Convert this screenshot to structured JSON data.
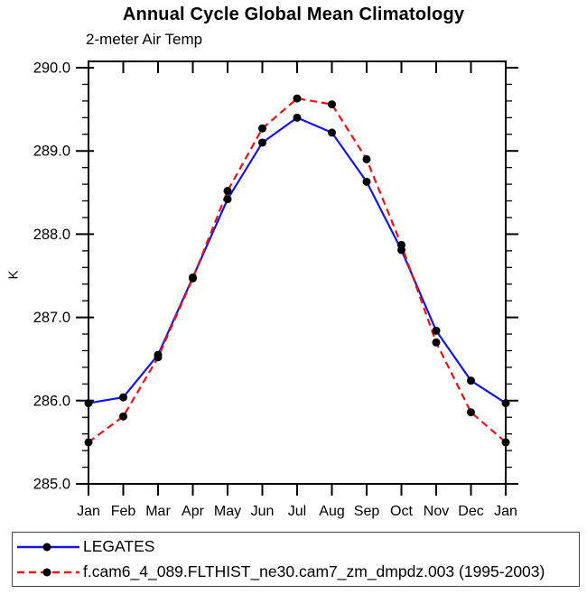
{
  "chart_data": {
    "type": "line",
    "title": "Annual Cycle Global Mean Climatology",
    "subtitle": "2-meter Air Temp",
    "ylabel": "K",
    "xlabel": "",
    "x_categories": [
      "Jan",
      "Feb",
      "Mar",
      "Apr",
      "May",
      "Jun",
      "Jul",
      "Aug",
      "Sep",
      "Oct",
      "Nov",
      "Dec",
      "Jan"
    ],
    "y_tick_labels": [
      "285.0",
      "286.0",
      "287.0",
      "288.0",
      "289.0",
      "290.0"
    ],
    "y_ticks": [
      285.0,
      286.0,
      287.0,
      288.0,
      289.0,
      290.0
    ],
    "y_minor_step": 0.2,
    "ylim": [
      285.0,
      290.08
    ],
    "grid": false,
    "legend_position": "bottom",
    "series": [
      {
        "name": "LEGATES",
        "color": "#1414e6",
        "style": "solid",
        "marker": "circle",
        "marker_color": "#000000",
        "values": [
          285.97,
          286.04,
          286.55,
          287.48,
          288.42,
          289.1,
          289.4,
          289.22,
          288.63,
          287.81,
          286.84,
          286.24,
          285.97
        ]
      },
      {
        "name": "f.cam6_4_089.FLTHIST_ne30.cam7_zm_dmpdz.003 (1995-2003)",
        "color": "#f01010",
        "style": "dashed",
        "marker": "circle",
        "marker_color": "#000000",
        "values": [
          285.5,
          285.81,
          286.52,
          287.47,
          288.52,
          289.27,
          289.63,
          289.56,
          288.9,
          287.87,
          286.7,
          285.86,
          285.5
        ]
      }
    ],
    "colors": {
      "axis": "#000000",
      "text": "#000000",
      "background": "#ffffff",
      "legend_border": "#444444"
    }
  }
}
